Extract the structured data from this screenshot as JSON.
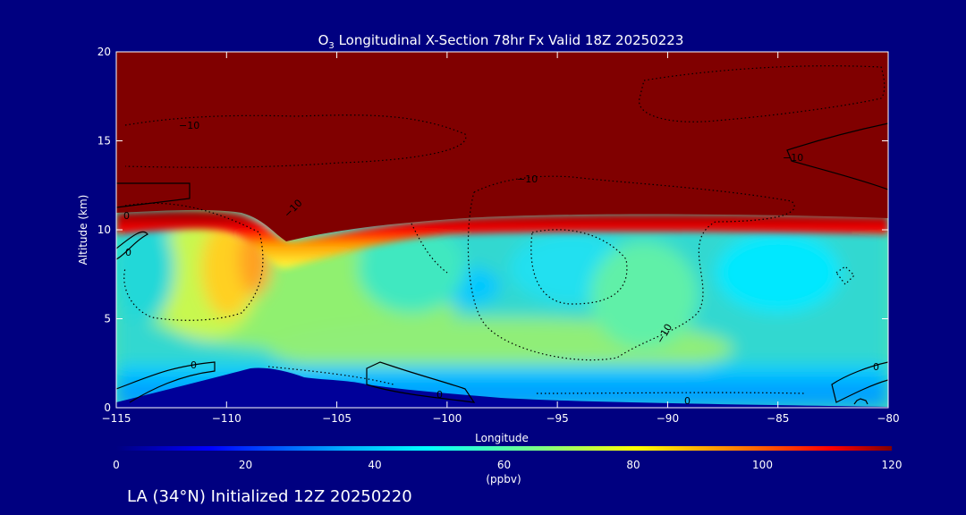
{
  "chart_data": {
    "type": "heatmap",
    "title_main": "O",
    "title_sub": "3",
    "title_rest": " Longitudinal X-Section 78hr  Fx Valid 18Z 20250223",
    "xlabel": "Longitude",
    "ylabel": "Altitude (km)",
    "xlim": [
      -115,
      -80
    ],
    "ylim": [
      0,
      20
    ],
    "x_ticks": [
      -115,
      -110,
      -105,
      -100,
      -95,
      -90,
      -85,
      -80
    ],
    "x_tick_labels": [
      "−115",
      "−110",
      "−105",
      "−100",
      "−95",
      "−90",
      "−85",
      "−80"
    ],
    "y_ticks": [
      0,
      5,
      10,
      15,
      20
    ],
    "y_tick_labels": [
      "0",
      "5",
      "10",
      "15",
      "20"
    ],
    "colorbar": {
      "range": [
        0,
        120
      ],
      "ticks": [
        0,
        20,
        40,
        60,
        80,
        100,
        120
      ],
      "tick_labels": [
        "0",
        "20",
        "40",
        "60",
        "80",
        "100",
        "120"
      ],
      "unit": "(ppbv)"
    },
    "contour_labels": [
      "−10",
      "−10",
      "−10",
      "−10",
      "0",
      "0",
      "0",
      "0",
      "0",
      "0",
      "−10"
    ],
    "footer": "LA (34°N) Initialized 12Z 20250220"
  },
  "colors": {
    "background": "#000080",
    "terrain": "#000099",
    "stratosphere": "#800000"
  }
}
